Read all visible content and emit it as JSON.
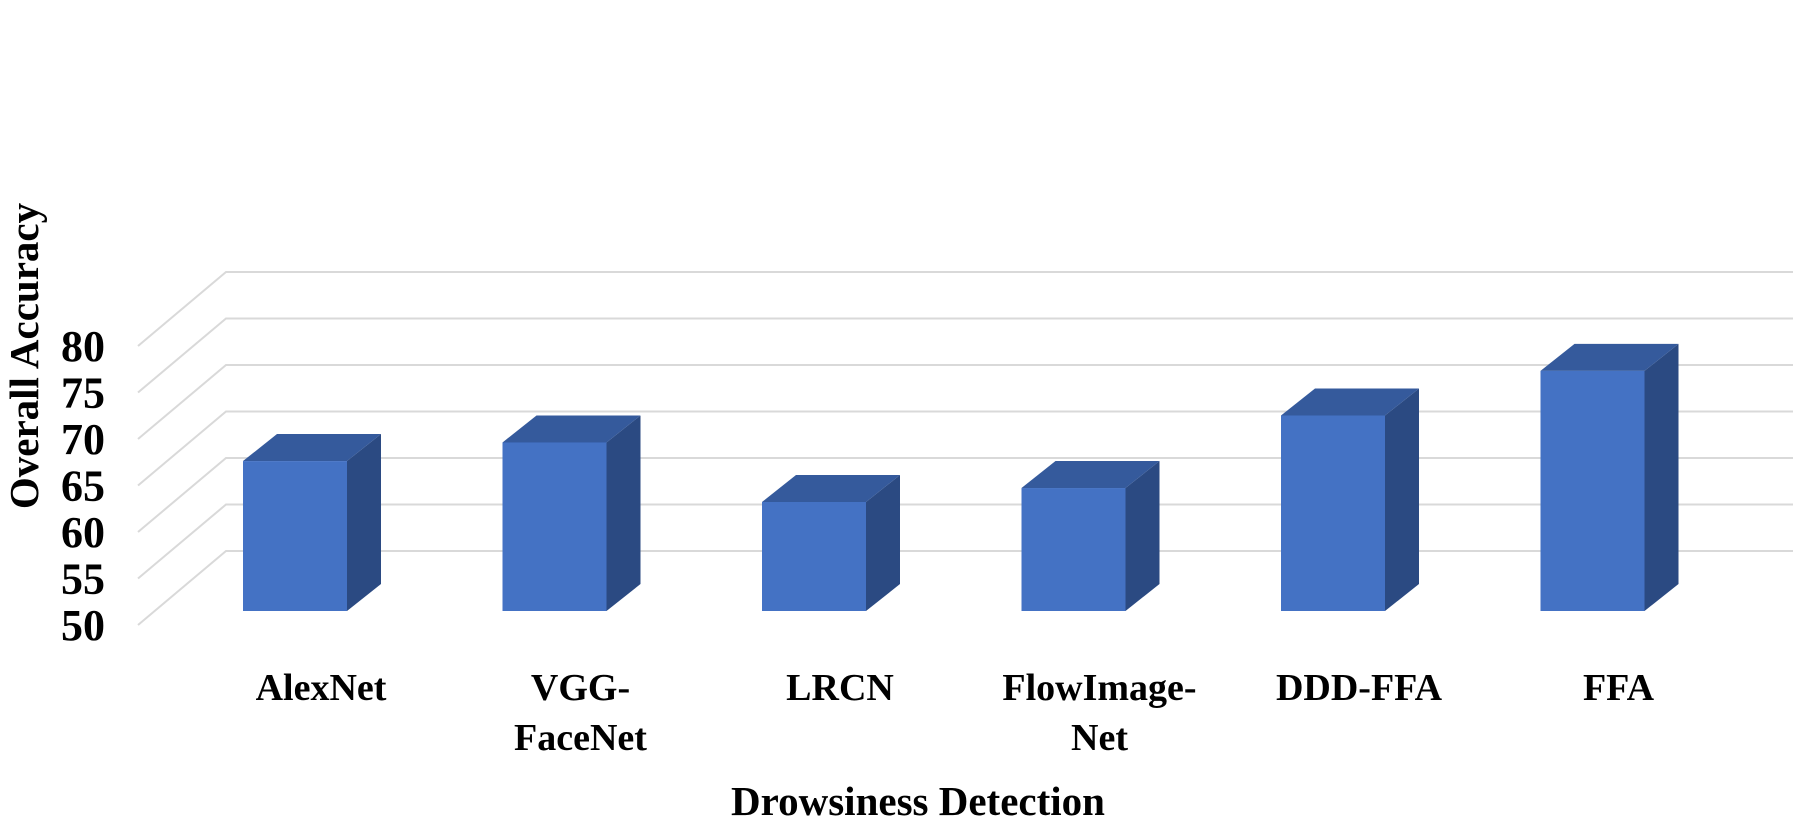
{
  "chart_data": {
    "type": "bar",
    "categories": [
      "AlexNet",
      "VGG-FaceNet",
      "LRCN",
      "FlowImage-Net",
      "DDD-FFA",
      "FFA"
    ],
    "category_lines": [
      [
        "AlexNet"
      ],
      [
        "VGG-",
        "FaceNet"
      ],
      [
        "LRCN"
      ],
      [
        "FlowImage-",
        "Net"
      ],
      [
        "DDD-FFA"
      ],
      [
        "FFA"
      ]
    ],
    "values": [
      65.8,
      67.8,
      61.4,
      62.9,
      70.7,
      75.5
    ],
    "xlabel": "Drowsiness Detection",
    "ylabel": "Overall Accuracy",
    "ylim": [
      50,
      80
    ],
    "yticks": [
      "50",
      "55",
      "60",
      "65",
      "70",
      "75",
      "80"
    ],
    "grid": true,
    "style": "3d-column",
    "colors": {
      "front": "#4472c4",
      "side": "#2b4a82",
      "top": "#355a9c",
      "grid": "#d9d9d9"
    }
  }
}
